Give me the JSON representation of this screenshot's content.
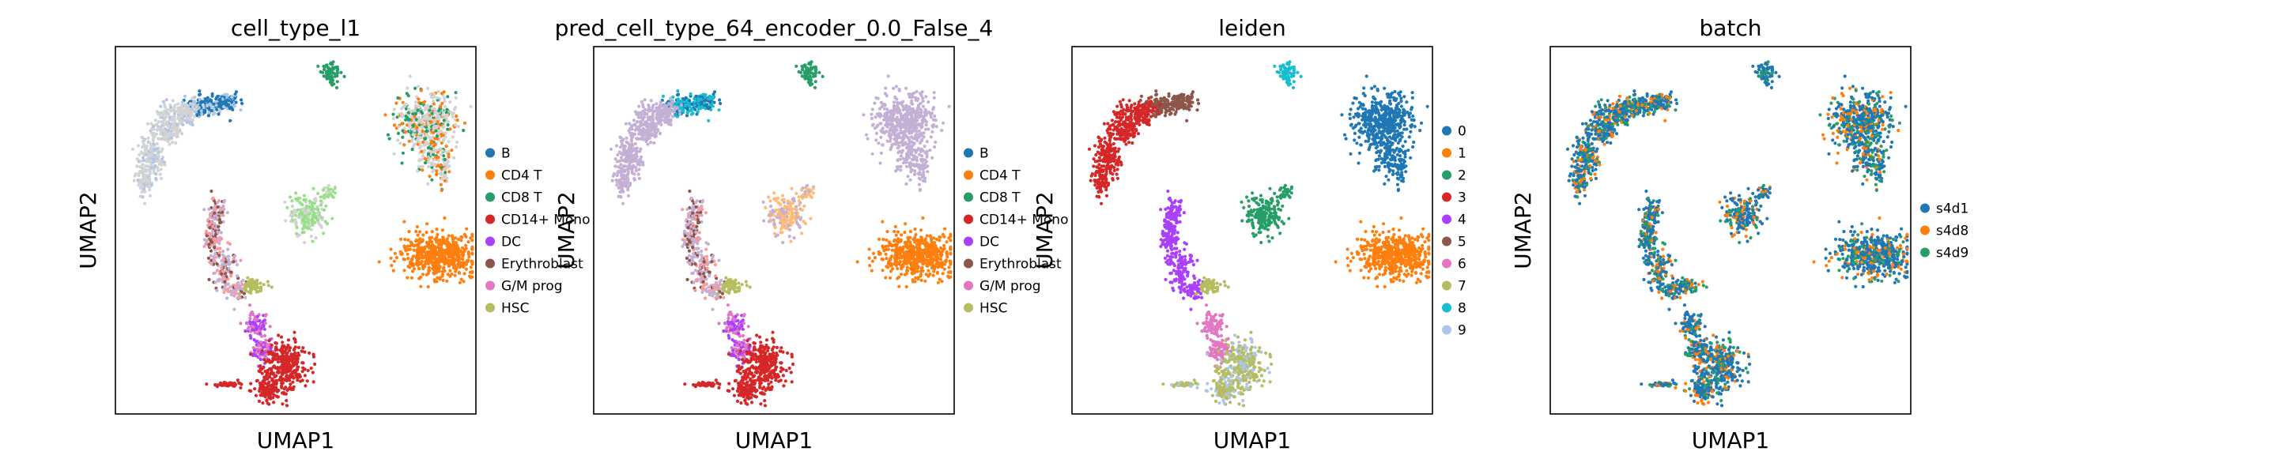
{
  "chart_data": [
    {
      "type": "scatter",
      "title": "cell_type_l1",
      "xlabel": "UMAP1",
      "ylabel": "UMAP2",
      "grid": false,
      "legend": "right",
      "legend_entries": [
        {
          "label": "B",
          "color": "#1f77b4"
        },
        {
          "label": "CD4 T",
          "color": "#ff7f0e"
        },
        {
          "label": "CD8 T",
          "color": "#279e68"
        },
        {
          "label": "CD14+ Mono",
          "color": "#d62728"
        },
        {
          "label": "DC",
          "color": "#aa40fc"
        },
        {
          "label": "Erythroblast",
          "color": "#8c564b"
        },
        {
          "label": "G/M prog",
          "color": "#e377c2"
        },
        {
          "label": "HSC",
          "color": "#b5bd61"
        }
      ]
    },
    {
      "type": "scatter",
      "title": "pred_cell_type_64_encoder_0.0_False_4",
      "xlabel": "UMAP1",
      "ylabel": "UMAP2",
      "grid": false,
      "legend": "right",
      "legend_entries": [
        {
          "label": "B",
          "color": "#1f77b4"
        },
        {
          "label": "CD4 T",
          "color": "#ff7f0e"
        },
        {
          "label": "CD8 T",
          "color": "#279e68"
        },
        {
          "label": "CD14+ Mono",
          "color": "#d62728"
        },
        {
          "label": "DC",
          "color": "#aa40fc"
        },
        {
          "label": "Erythroblast",
          "color": "#8c564b"
        },
        {
          "label": "G/M prog",
          "color": "#e377c2"
        },
        {
          "label": "HSC",
          "color": "#b5bd61"
        }
      ]
    },
    {
      "type": "scatter",
      "title": "leiden",
      "xlabel": "UMAP1",
      "ylabel": "UMAP2",
      "grid": false,
      "legend": "right",
      "legend_entries": [
        {
          "label": "0",
          "color": "#1f77b4"
        },
        {
          "label": "1",
          "color": "#ff7f0e"
        },
        {
          "label": "2",
          "color": "#279e68"
        },
        {
          "label": "3",
          "color": "#d62728"
        },
        {
          "label": "4",
          "color": "#aa40fc"
        },
        {
          "label": "5",
          "color": "#8c564b"
        },
        {
          "label": "6",
          "color": "#e377c2"
        },
        {
          "label": "7",
          "color": "#b5bd61"
        },
        {
          "label": "8",
          "color": "#17becf"
        },
        {
          "label": "9",
          "color": "#aec7e8"
        }
      ]
    },
    {
      "type": "scatter",
      "title": "batch",
      "xlabel": "UMAP1",
      "ylabel": "UMAP2",
      "grid": false,
      "legend": "right",
      "legend_entries": [
        {
          "label": "s4d1",
          "color": "#1f77b4"
        },
        {
          "label": "s4d8",
          "color": "#ff7f0e"
        },
        {
          "label": "s4d9",
          "color": "#279e68"
        }
      ]
    }
  ]
}
